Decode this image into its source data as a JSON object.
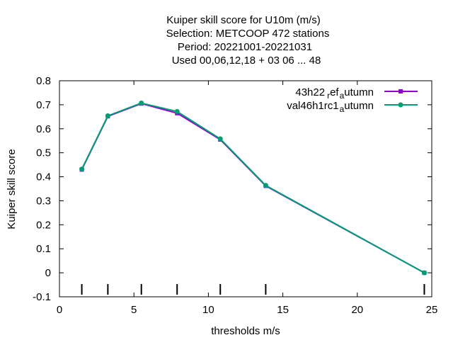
{
  "chart_data": {
    "type": "line",
    "title_lines": [
      "Kuiper skill score  for U10m (m/s)",
      "Selection: METCOOP    472 stations",
      "Period: 20221001-20221031",
      "Used  00,06,12,18  + 03 06 ... 48"
    ],
    "xlabel": "thresholds m/s",
    "ylabel": "Kuiper skill score",
    "xlim": [
      0,
      25
    ],
    "ylim": [
      -0.1,
      0.8
    ],
    "xticks": [
      0,
      5,
      10,
      15,
      20,
      25
    ],
    "yticks": [
      -0.1,
      0,
      0.1,
      0.2,
      0.3,
      0.4,
      0.5,
      0.6,
      0.7,
      0.8
    ],
    "xtick_labels": [
      "0",
      "5",
      "10",
      "15",
      "20",
      "25"
    ],
    "ytick_labels": [
      "-0.1",
      "0",
      "0.1",
      "0.2",
      "0.3",
      "0.4",
      "0.5",
      "0.6",
      "0.7",
      "0.8"
    ],
    "threshold_markers": [
      1.5,
      3.25,
      5.5,
      7.9,
      10.8,
      13.85,
      24.5
    ],
    "grid": false,
    "legend_position": "top-right",
    "series": [
      {
        "name": "43h22_ref_autumn",
        "label_parts": {
          "main": "43h22",
          "sub1": "r",
          "mid": "ef",
          "sub2": "a",
          "tail": "utumn"
        },
        "color": "#9400d3",
        "marker": "filled-square",
        "x": [
          1.5,
          3.25,
          5.5,
          7.9,
          10.8,
          13.85,
          24.5
        ],
        "y": [
          0.43,
          0.652,
          0.705,
          0.665,
          0.555,
          0.362,
          0.0
        ]
      },
      {
        "name": "val46h1rc1_autumn",
        "label_parts": {
          "main": "val46h1rc1",
          "sub1": "",
          "mid": "",
          "sub2": "a",
          "tail": "utumn"
        },
        "color": "#009e73",
        "marker": "filled-circle",
        "x": [
          1.5,
          3.25,
          5.5,
          7.9,
          10.8,
          13.85,
          24.5
        ],
        "y": [
          0.432,
          0.654,
          0.707,
          0.672,
          0.558,
          0.364,
          0.0
        ]
      }
    ]
  }
}
